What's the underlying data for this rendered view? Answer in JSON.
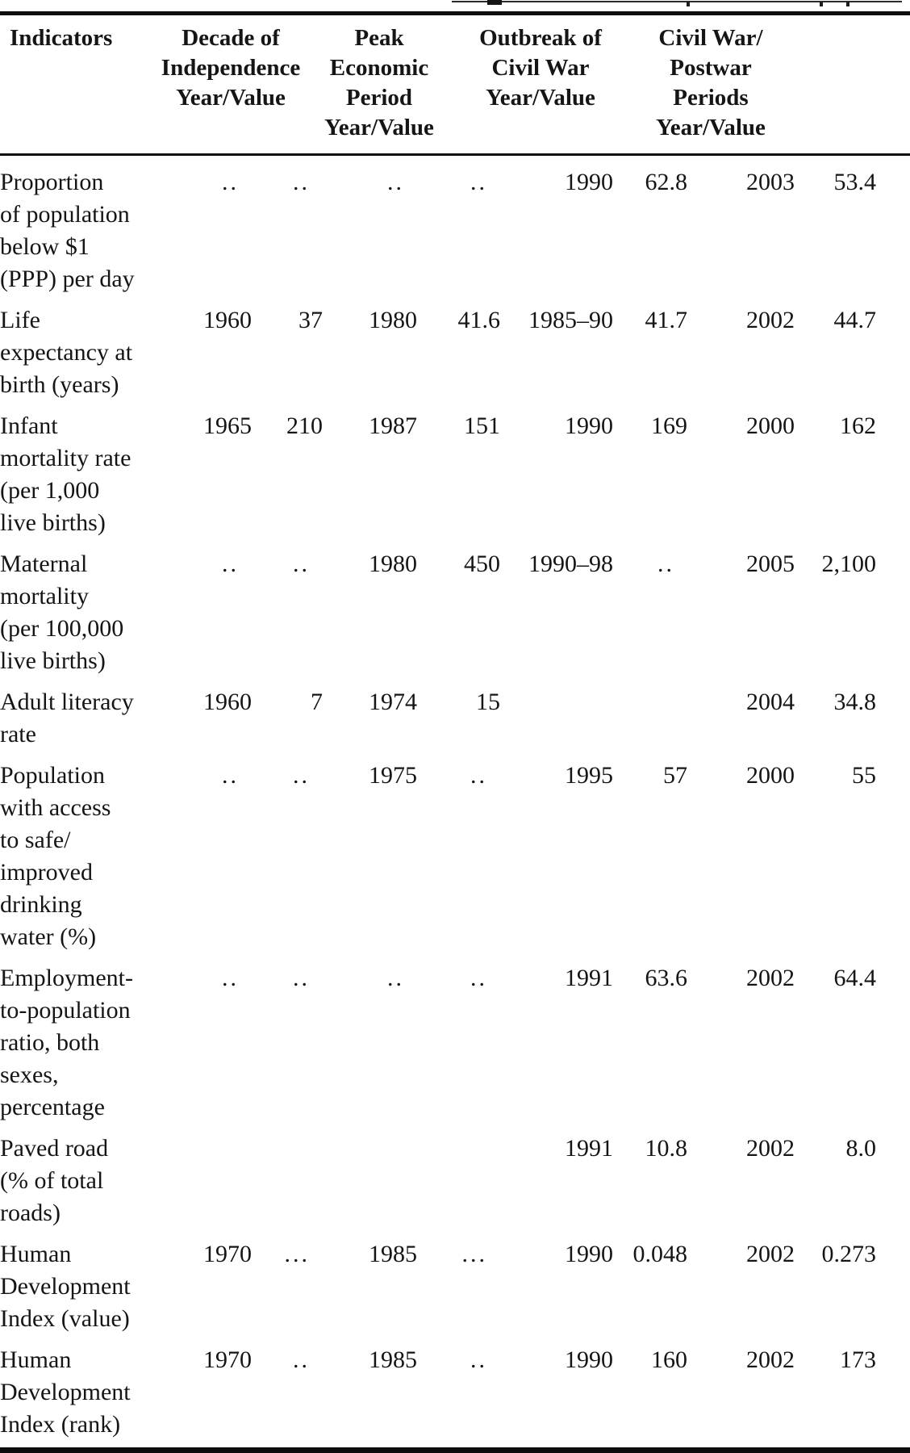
{
  "table": {
    "header": {
      "indicators_label": "Indicators",
      "col_groups": [
        {
          "label": "Decade of\nIndependence\nYear/Value"
        },
        {
          "label": "Peak\nEconomic\nPeriod\nYear/Value"
        },
        {
          "label": "Outbreak of\nCivil War\nYear/Value"
        },
        {
          "label": "Civil War/\nPostwar\nPeriods\nYear/Value"
        }
      ]
    },
    "missing_marker": "..",
    "rows": [
      {
        "indicator": "Proportion\nof population\nbelow $1\n(PPP) per day",
        "cells": [
          "..",
          "..",
          "..",
          "..",
          "1990",
          "62.8",
          "2003",
          "53.4"
        ]
      },
      {
        "indicator": "Life\nexpectancy at\nbirth (years)",
        "cells": [
          "1960",
          "37",
          "1980",
          "41.6",
          "1985–90",
          "41.7",
          "2002",
          "44.7"
        ]
      },
      {
        "indicator": "Infant\nmortality rate\n(per 1,000\nlive births)",
        "cells": [
          "1965",
          "210",
          "1987",
          "151",
          "1990",
          "169",
          "2000",
          "162"
        ]
      },
      {
        "indicator": "Maternal\nmortality\n(per 100,000\nlive births)",
        "cells": [
          "..",
          "..",
          "1980",
          "450",
          "1990–98",
          "..",
          "2005",
          "2,100"
        ]
      },
      {
        "indicator": "Adult literacy\nrate",
        "cells": [
          "1960",
          "7",
          "1974",
          "15",
          "",
          "",
          "2004",
          "34.8"
        ]
      },
      {
        "indicator": "Population\nwith access\nto safe/\nimproved\ndrinking\nwater (%)",
        "cells": [
          "..",
          "..",
          "1975",
          "..",
          "1995",
          "57",
          "2000",
          "55"
        ]
      },
      {
        "indicator": "Employment-\nto-population\nratio, both\nsexes,\npercentage",
        "cells": [
          "..",
          "..",
          "..",
          "..",
          "1991",
          "63.6",
          "2002",
          "64.4"
        ]
      },
      {
        "indicator": "Paved road\n(% of total\nroads)",
        "cells": [
          "",
          "",
          "",
          "",
          "1991",
          "10.8",
          "2002",
          "8.0"
        ]
      },
      {
        "indicator": "Human\nDevelopment\nIndex (value)",
        "cells": [
          "1970",
          "...",
          "1985",
          "...",
          "1990",
          "0.048",
          "2002",
          "0.273"
        ]
      },
      {
        "indicator": "Human\nDevelopment\nIndex (rank)",
        "cells": [
          "1970",
          "..",
          "1985",
          "..",
          "1990",
          "160",
          "2002",
          "173"
        ]
      }
    ]
  },
  "colors": {
    "text": "#151515",
    "rule": "#0d0d0d",
    "background": "#ffffff"
  }
}
